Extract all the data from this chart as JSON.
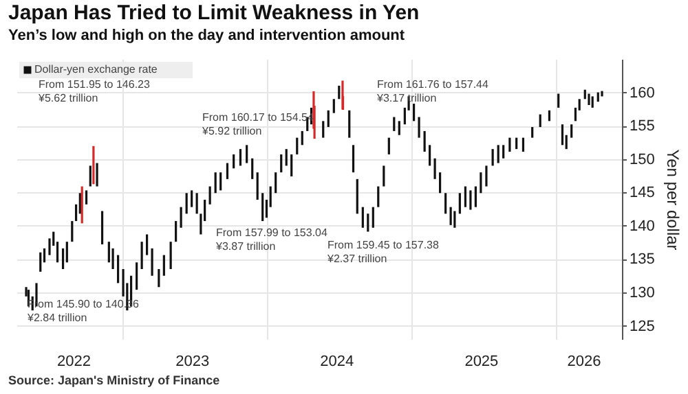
{
  "chart_data": {
    "type": "bar",
    "title": "Japan Has Tried to Limit Weakness in Yen",
    "subtitle": "Yen’s low and high on the day and intervention amount",
    "ylabel": "Yen per dollar",
    "x": [
      "2022-05-04",
      "2022-05-10",
      "2022-05-20",
      "2022-05-30",
      "2022-06-09",
      "2022-06-19",
      "2022-07-02",
      "2022-07-12",
      "2022-07-22",
      "2022-08-05",
      "2022-08-15",
      "2022-08-28",
      "2022-09-07",
      "2022-09-17",
      "2022-09-22",
      "2022-10-03",
      "2022-10-13",
      "2022-10-21",
      "2022-10-30",
      "2022-11-12",
      "2022-11-29",
      "2022-12-09",
      "2022-12-22",
      "2023-01-04",
      "2023-01-14",
      "2023-01-24",
      "2023-02-07",
      "2023-02-20",
      "2023-03-05",
      "2023-03-18",
      "2023-04-04",
      "2023-04-17",
      "2023-05-04",
      "2023-05-17",
      "2023-05-30",
      "2023-06-13",
      "2023-06-26",
      "2023-07-09",
      "2023-07-19",
      "2023-07-29",
      "2023-08-11",
      "2023-08-25",
      "2023-09-07",
      "2023-09-24",
      "2023-10-10",
      "2023-10-27",
      "2023-11-12",
      "2023-11-26",
      "2023-12-09",
      "2023-12-22",
      "2024-01-01",
      "2024-01-11",
      "2024-01-24",
      "2024-02-07",
      "2024-02-20",
      "2024-03-04",
      "2024-03-18",
      "2024-03-31",
      "2024-04-13",
      "2024-04-23",
      "2024-04-29",
      "2024-05-01",
      "2024-05-23",
      "2024-06-05",
      "2024-06-19",
      "2024-07-02",
      "2024-07-11",
      "2024-07-12",
      "2024-07-28",
      "2024-08-07",
      "2024-08-17",
      "2024-08-31",
      "2024-09-13",
      "2024-09-26",
      "2024-10-09",
      "2024-10-23",
      "2024-11-05",
      "2024-11-18",
      "2024-12-01",
      "2024-12-15",
      "2024-12-25",
      "2025-01-07",
      "2025-01-20",
      "2025-02-03",
      "2025-02-16",
      "2025-03-01",
      "2025-03-14",
      "2025-03-28",
      "2025-04-10",
      "2025-04-20",
      "2025-05-03",
      "2025-05-17",
      "2025-05-30",
      "2025-06-12",
      "2025-06-25",
      "2025-07-09",
      "2025-07-25",
      "2025-08-08",
      "2025-08-21",
      "2025-09-06",
      "2025-09-23",
      "2025-10-10",
      "2025-11-02",
      "2025-11-22",
      "2025-12-15",
      "2026-01-07",
      "2026-01-17",
      "2026-01-27",
      "2026-02-09",
      "2026-02-19",
      "2026-03-01",
      "2026-03-15",
      "2026-03-25",
      "2026-04-03",
      "2026-04-17",
      "2026-04-27"
    ],
    "series": [
      {
        "name": "Dollar-yen exchange rate",
        "color": "#111111",
        "base": [
          129.4,
          127.9,
          127.3,
          127.9,
          133.1,
          134.5,
          135.6,
          137.0,
          134.5,
          133.5,
          134.5,
          137.6,
          140.7,
          141.8,
          140.36,
          143.2,
          145.9,
          146.23,
          145.9,
          137.2,
          134.5,
          133.5,
          131.4,
          129.4,
          127.3,
          127.9,
          130.4,
          133.5,
          135.6,
          132.5,
          130.8,
          132.5,
          133.5,
          137.6,
          139.7,
          141.8,
          142.8,
          141.8,
          138.7,
          140.7,
          143.2,
          144.9,
          145.3,
          147.0,
          148.6,
          149.0,
          149.4,
          147.0,
          143.9,
          140.7,
          141.2,
          142.8,
          144.9,
          148.0,
          149.0,
          147.4,
          150.7,
          152.1,
          154.2,
          155.2,
          154.54,
          153.04,
          153.2,
          154.8,
          156.9,
          159.0,
          157.44,
          157.38,
          153.2,
          148.0,
          141.8,
          139.7,
          139.1,
          139.7,
          142.8,
          145.9,
          150.7,
          154.2,
          153.6,
          155.2,
          157.3,
          155.7,
          153.2,
          151.1,
          149.0,
          147.0,
          144.9,
          141.8,
          140.1,
          139.7,
          141.8,
          142.8,
          142.4,
          142.8,
          144.9,
          145.9,
          149.0,
          149.4,
          150.1,
          151.1,
          151.5,
          151.1,
          153.2,
          154.8,
          155.7,
          157.7,
          152.1,
          151.5,
          153.2,
          155.7,
          157.3,
          159.0,
          158.1,
          157.7,
          158.6,
          159.4
        ],
        "values": [
          1.4,
          2.5,
          2.1,
          3.5,
          2.9,
          2.1,
          2.5,
          2.1,
          3.1,
          3.1,
          3.1,
          3.1,
          2.5,
          3.1,
          5.54,
          2.1,
          3.1,
          5.72,
          3.5,
          5.0,
          3.1,
          3.1,
          4.2,
          4.1,
          4.1,
          4.6,
          4.1,
          4.1,
          3.1,
          4.1,
          2.7,
          3.1,
          4.1,
          3.1,
          3.1,
          3.1,
          2.5,
          3.1,
          3.1,
          3.2,
          2.7,
          3.1,
          2.7,
          2.4,
          2.1,
          2.5,
          2.7,
          3.1,
          4.1,
          4.2,
          2.7,
          3.1,
          3.1,
          2.7,
          2.5,
          3.3,
          2.5,
          2.1,
          2.1,
          2.5,
          5.63,
          4.95,
          2.5,
          2.5,
          2.1,
          2.0,
          4.32,
          2.07,
          4.1,
          4.1,
          5.2,
          3.1,
          2.7,
          3.1,
          3.1,
          3.1,
          2.5,
          2.1,
          2.1,
          2.5,
          2.1,
          2.6,
          3.1,
          3.1,
          3.1,
          3.1,
          3.1,
          3.1,
          2.7,
          2.5,
          3.1,
          3.1,
          2.9,
          3.1,
          3.1,
          3.1,
          2.5,
          2.7,
          2.0,
          2.1,
          1.7,
          2.1,
          1.6,
          1.9,
          1.6,
          2.1,
          3.1,
          2.1,
          2.0,
          2.0,
          1.7,
          1.4,
          1.7,
          1.7,
          1.4,
          0.8
        ],
        "colors": [
          "#111111",
          "#111111",
          "#111111",
          "#111111",
          "#111111",
          "#111111",
          "#111111",
          "#111111",
          "#111111",
          "#111111",
          "#111111",
          "#111111",
          "#111111",
          "#111111",
          "#d42a2a",
          "#111111",
          "#111111",
          "#d42a2a",
          "#111111",
          "#111111",
          "#111111",
          "#111111",
          "#111111",
          "#111111",
          "#111111",
          "#111111",
          "#111111",
          "#111111",
          "#111111",
          "#111111",
          "#111111",
          "#111111",
          "#111111",
          "#111111",
          "#111111",
          "#111111",
          "#111111",
          "#111111",
          "#111111",
          "#111111",
          "#111111",
          "#111111",
          "#111111",
          "#111111",
          "#111111",
          "#111111",
          "#111111",
          "#111111",
          "#111111",
          "#111111",
          "#111111",
          "#111111",
          "#111111",
          "#111111",
          "#111111",
          "#111111",
          "#111111",
          "#111111",
          "#111111",
          "#111111",
          "#d42a2a",
          "#d42a2a",
          "#111111",
          "#111111",
          "#111111",
          "#111111",
          "#d42a2a",
          "#d42a2a",
          "#111111",
          "#111111",
          "#111111",
          "#111111",
          "#111111",
          "#111111",
          "#111111",
          "#111111",
          "#111111",
          "#111111",
          "#111111",
          "#111111",
          "#111111",
          "#111111",
          "#111111",
          "#111111",
          "#111111",
          "#111111",
          "#111111",
          "#111111",
          "#111111",
          "#111111",
          "#111111",
          "#111111",
          "#111111",
          "#111111",
          "#111111",
          "#111111",
          "#111111",
          "#111111",
          "#111111",
          "#111111",
          "#111111",
          "#111111",
          "#111111",
          "#111111",
          "#111111",
          "#111111",
          "#111111",
          "#111111",
          "#111111",
          "#111111",
          "#111111",
          "#111111",
          "#111111",
          "#111111",
          "#111111",
          "#111111"
        ]
      }
    ],
    "xlim": [
      "2022-04-27",
      "2026-05-30"
    ],
    "xticks": [
      {
        "value": "2022-08-31",
        "label": "2022"
      },
      {
        "value": "2023-01-01",
        "label": null
      },
      {
        "value": "2023-06-26",
        "label": "2023"
      },
      {
        "value": "2024-01-01",
        "label": null
      },
      {
        "value": "2024-06-25",
        "label": "2024"
      },
      {
        "value": "2025-01-01",
        "label": null
      },
      {
        "value": "2025-06-25",
        "label": "2025"
      },
      {
        "value": "2026-01-01",
        "label": null
      },
      {
        "value": "2026-03-11",
        "label": "2026"
      }
    ],
    "ylim": [
      123,
      165
    ],
    "yticks": [
      125,
      130,
      135,
      140,
      145,
      150,
      155,
      160
    ],
    "grid": true,
    "legend": "top left",
    "annotations": [
      "From 151.95 to 146.23\n¥5.62 trillion",
      "From 160.17 to 154.54\n¥5.92 trillion",
      "From 161.76 to 157.44\n¥3.17 trillion",
      "From 157.99 to 153.04\n¥3.87 trillion",
      "From 159.45 to 157.38\n¥2.37 trillion",
      "From 145.90 to 140.36\n¥2.84 trillion",
      "Source: Japan's Ministry of Finance"
    ]
  }
}
